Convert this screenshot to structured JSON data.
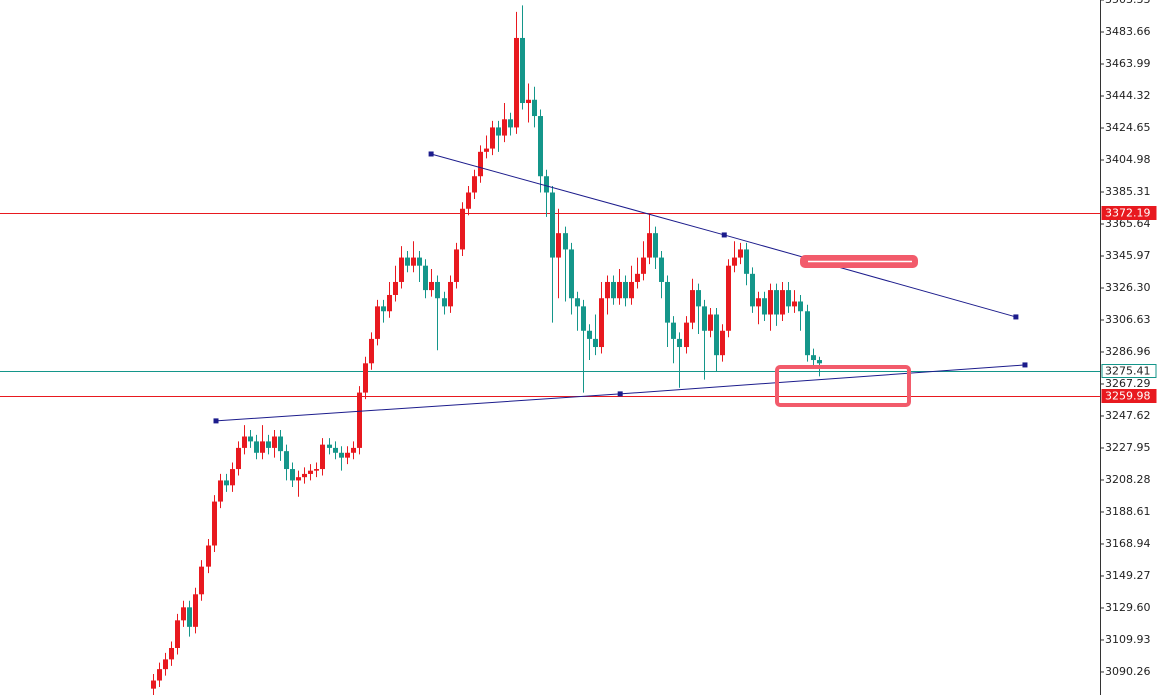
{
  "chart_data": {
    "type": "candlestick",
    "up_color": "#e8191f",
    "down_color": "#14968a",
    "xlim": [
      -25.3,
      156.5
    ],
    "ylim": [
      3076.1,
      3503.33
    ],
    "yticks": [
      3503.33,
      3483.66,
      3463.99,
      3444.32,
      3424.65,
      3404.98,
      3385.31,
      3365.64,
      3345.97,
      {
        "value": 3326.3,
        "label": "3326.30"
      },
      3306.63,
      3286.96,
      3267.29,
      3247.62,
      3227.95,
      3208.28,
      3188.61,
      3168.94,
      3149.27,
      {
        "value": 3129.6,
        "label": "3129.60"
      },
      3109.93,
      3090.26
    ],
    "open": [
      3080,
      3085,
      3092,
      3098,
      3105,
      3122,
      3130,
      3118,
      3138,
      3155,
      3168,
      3195,
      3208,
      3205,
      3215,
      3228,
      3235,
      3232,
      3225,
      3232,
      3228,
      3235,
      3226,
      3215,
      3208,
      3210,
      3212,
      3214,
      3215,
      3230,
      3228,
      3225,
      3222,
      3225,
      3228,
      3262,
      3280,
      3295,
      3315,
      3312,
      3322,
      3330,
      3345,
      3340,
      3345,
      3340,
      3325,
      3330,
      3320,
      3315,
      3330,
      3350,
      3375,
      3385,
      3395,
      3410,
      3412,
      3425,
      3420,
      3430,
      3425,
      3480,
      3440,
      3442,
      3432,
      3395,
      3385,
      3345,
      3360,
      3350,
      3320,
      3315,
      3300,
      3295,
      3290,
      3320,
      3330,
      3320,
      3330,
      3320,
      3330,
      3335,
      3345,
      3360,
      3345,
      3330,
      3305,
      3295,
      3290,
      3305,
      3325,
      3315,
      3300,
      3310,
      3285,
      3300,
      3340,
      3345,
      3350,
      3335,
      3315,
      3320,
      3310,
      3325,
      3310,
      3325,
      3315,
      3318,
      3312,
      3285,
      3282
    ],
    "high": [
      3089,
      3096,
      3102,
      3109,
      3126,
      3134,
      3134,
      3142,
      3159,
      3172,
      3199,
      3212,
      3212,
      3219,
      3232,
      3242,
      3239,
      3236,
      3242,
      3236,
      3239,
      3239,
      3230,
      3219,
      3214,
      3216,
      3218,
      3219,
      3234,
      3234,
      3232,
      3229,
      3229,
      3232,
      3266,
      3284,
      3299,
      3319,
      3319,
      3330,
      3340,
      3352,
      3349,
      3355,
      3349,
      3344,
      3338,
      3334,
      3324,
      3334,
      3354,
      3379,
      3389,
      3399,
      3414,
      3420,
      3429,
      3429,
      3440,
      3434,
      3496,
      3500,
      3452,
      3450,
      3436,
      3399,
      3389,
      3375,
      3364,
      3354,
      3324,
      3319,
      3304,
      3310,
      3330,
      3334,
      3334,
      3338,
      3334,
      3340,
      3345,
      3355,
      3372,
      3364,
      3349,
      3334,
      3309,
      3299,
      3309,
      3332,
      3329,
      3319,
      3314,
      3314,
      3304,
      3344,
      3355,
      3354,
      3354,
      3339,
      3324,
      3324,
      3329,
      3329,
      3330,
      3330,
      3325,
      3322,
      3316,
      3289,
      3284
    ],
    "low": [
      3076,
      3081,
      3088,
      3094,
      3101,
      3118,
      3112,
      3114,
      3134,
      3151,
      3164,
      3191,
      3201,
      3201,
      3211,
      3224,
      3228,
      3221,
      3221,
      3224,
      3222,
      3220,
      3208,
      3204,
      3198,
      3206,
      3208,
      3210,
      3211,
      3224,
      3221,
      3214,
      3218,
      3221,
      3224,
      3258,
      3276,
      3291,
      3305,
      3308,
      3318,
      3326,
      3336,
      3336,
      3330,
      3320,
      3321,
      3288,
      3310,
      3311,
      3326,
      3346,
      3371,
      3381,
      3391,
      3406,
      3408,
      3410,
      3416,
      3420,
      3421,
      3436,
      3428,
      3425,
      3385,
      3370,
      3305,
      3320,
      3318,
      3310,
      3300,
      3262,
      3282,
      3285,
      3286,
      3310,
      3316,
      3316,
      3315,
      3316,
      3326,
      3331,
      3341,
      3338,
      3320,
      3290,
      3280,
      3265,
      3286,
      3301,
      3298,
      3270,
      3296,
      3275,
      3281,
      3296,
      3336,
      3341,
      3328,
      3311,
      3304,
      3306,
      3300,
      3303,
      3306,
      3311,
      3311,
      3300,
      3281,
      3278,
      3272
    ],
    "close": [
      3085,
      3092,
      3098,
      3105,
      3122,
      3130,
      3118,
      3138,
      3155,
      3168,
      3195,
      3208,
      3205,
      3215,
      3228,
      3235,
      3232,
      3225,
      3232,
      3228,
      3235,
      3226,
      3215,
      3208,
      3210,
      3212,
      3214,
      3215,
      3230,
      3228,
      3225,
      3222,
      3225,
      3228,
      3262,
      3280,
      3295,
      3315,
      3312,
      3322,
      3330,
      3345,
      3340,
      3345,
      3340,
      3325,
      3330,
      3320,
      3315,
      3330,
      3350,
      3375,
      3385,
      3395,
      3410,
      3412,
      3425,
      3420,
      3430,
      3425,
      3480,
      3440,
      3442,
      3432,
      3395,
      3385,
      3345,
      3360,
      3350,
      3320,
      3315,
      3300,
      3295,
      3290,
      3320,
      3330,
      3320,
      3330,
      3320,
      3330,
      3335,
      3345,
      3360,
      3345,
      3330,
      3305,
      3295,
      3290,
      3305,
      3325,
      3315,
      3300,
      3310,
      3285,
      3300,
      3340,
      3345,
      3350,
      3335,
      3315,
      3320,
      3310,
      3325,
      3310,
      3325,
      3315,
      3318,
      3312,
      3285,
      3282,
      3280
    ],
    "levels": [
      {
        "value": 3372.19,
        "color": "#e8191f",
        "label_style": "filled"
      },
      {
        "value": 3275.41,
        "color": "#14968a",
        "label_style": "outline"
      },
      {
        "value": 3259.98,
        "color": "#e8191f",
        "label_style": "filled"
      }
    ],
    "trendlines": [
      {
        "x": [
          45.95,
          94.4,
          142.6
        ],
        "y": [
          3408.67,
          3358.9,
          3308.5
        ],
        "color": "#1c1c8c"
      },
      {
        "x": [
          10.4,
          77.2,
          144.1
        ],
        "y": [
          3244.6,
          3261.2,
          3279.0
        ],
        "color": "#1c1c8c"
      }
    ]
  }
}
